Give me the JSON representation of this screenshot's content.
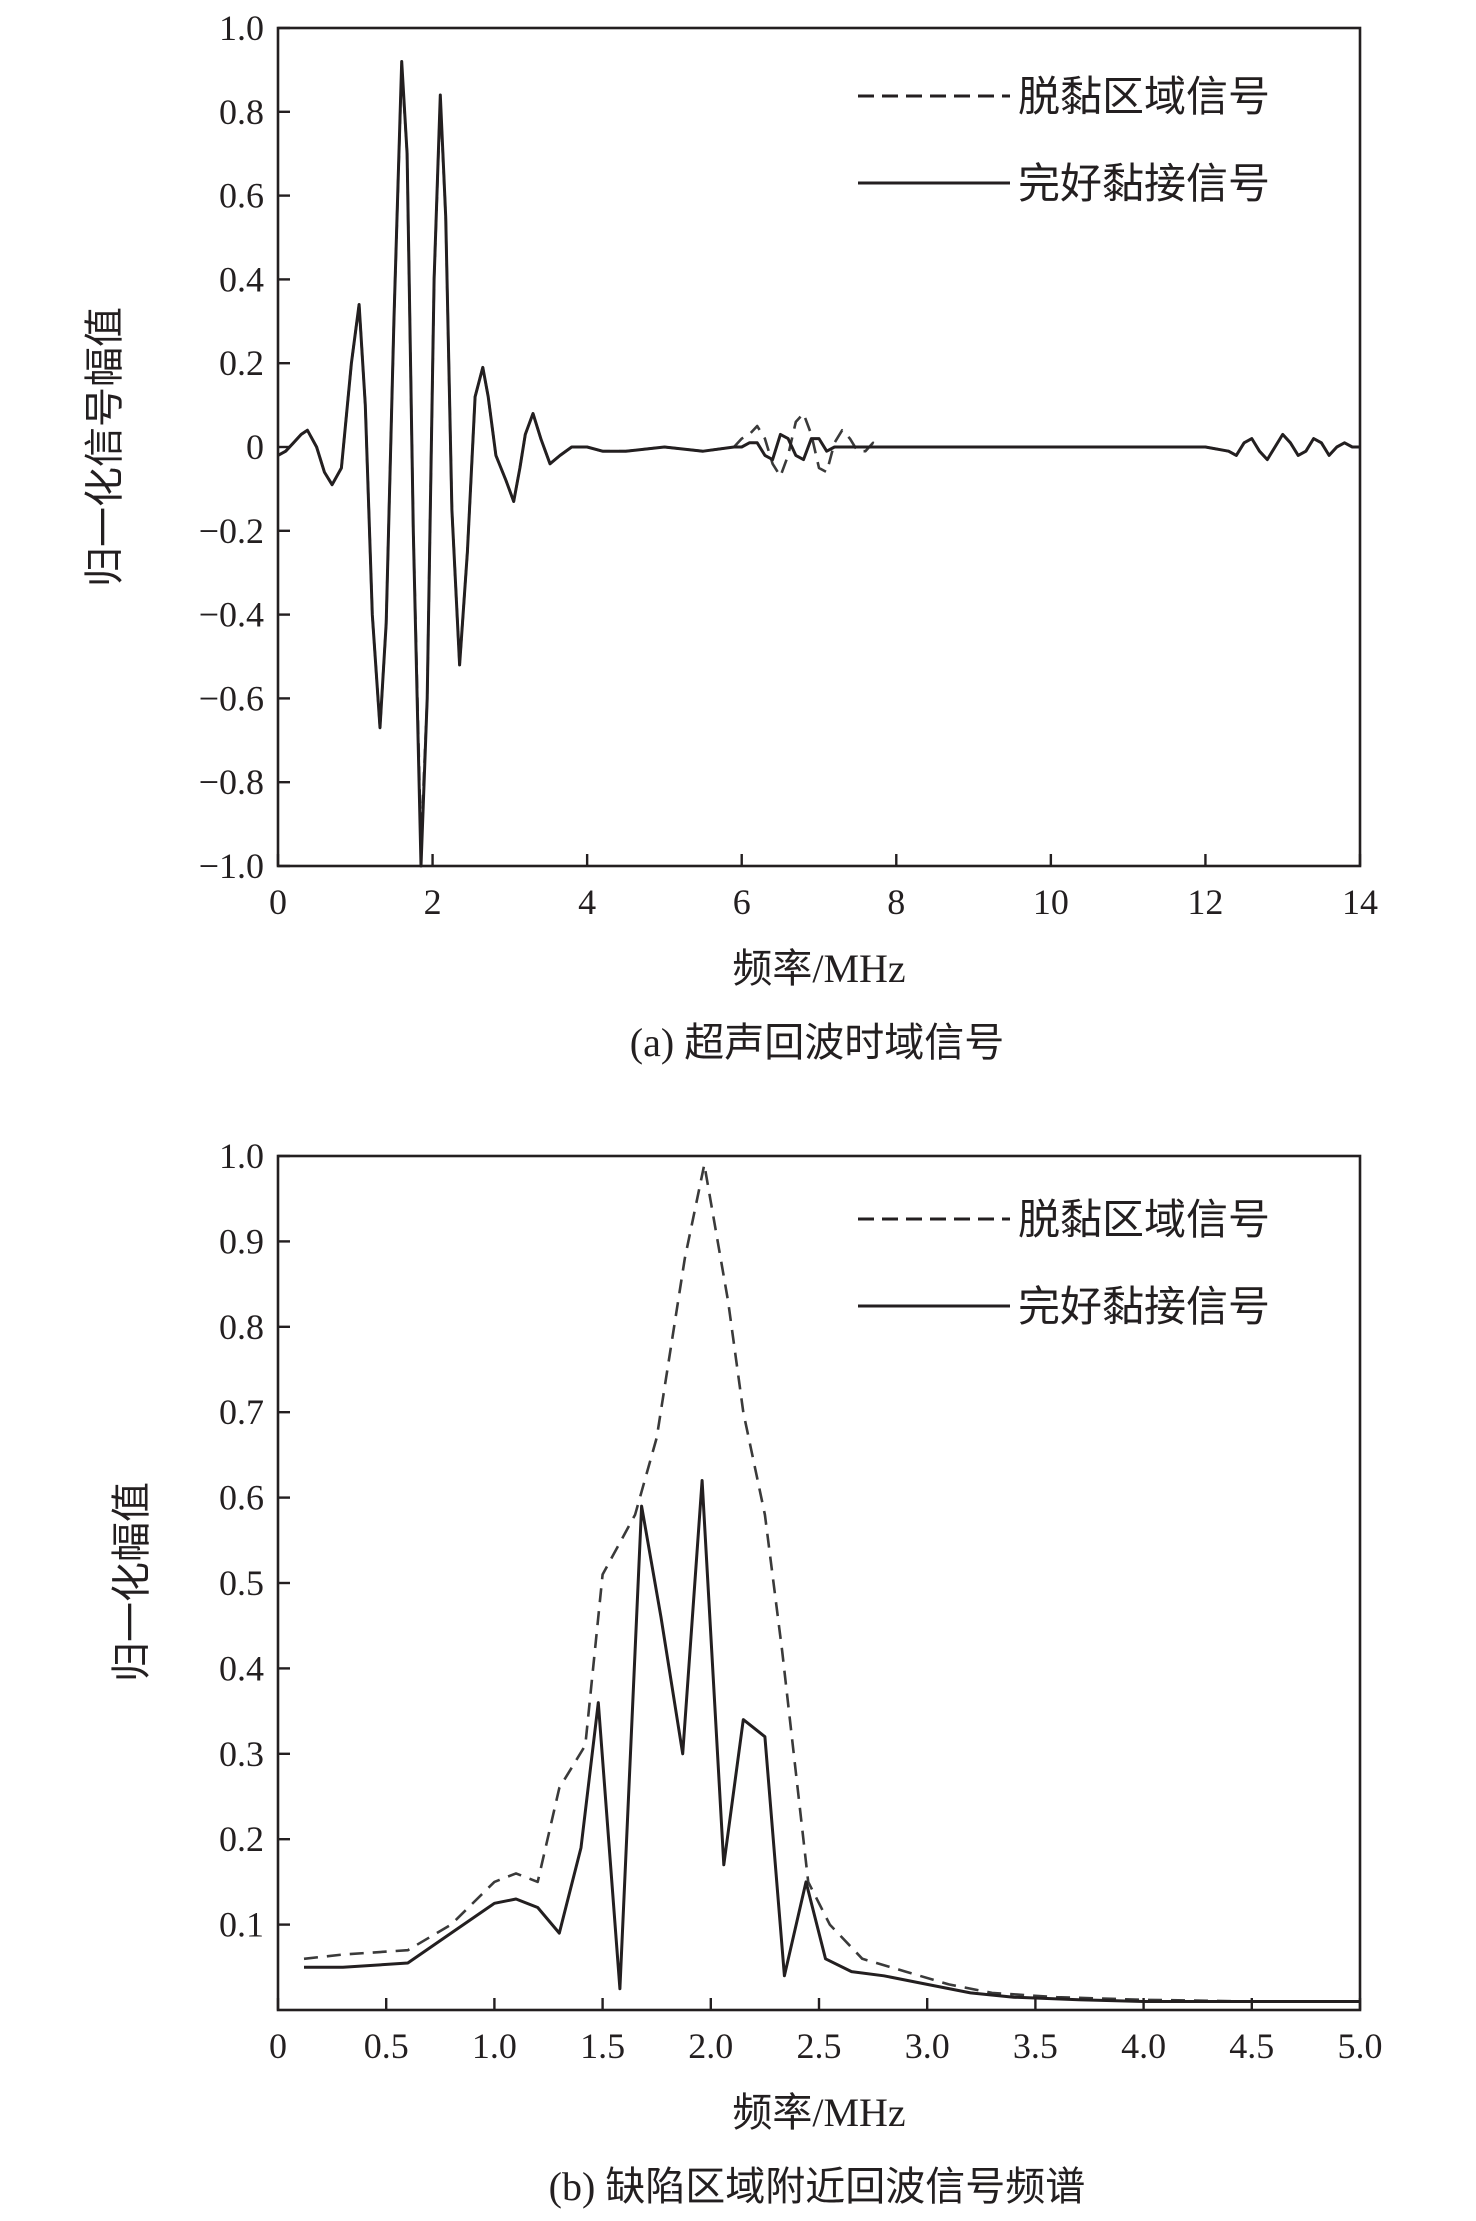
{
  "chart_data": [
    {
      "type": "line",
      "caption": "(a) 超声回波时域信号",
      "xlabel": "频率/MHz",
      "ylabel": "归一化信号幅值",
      "xlim": [
        0,
        14
      ],
      "ylim": [
        -1.0,
        1.0
      ],
      "xticks": [
        0,
        2,
        4,
        6,
        8,
        10,
        12,
        14
      ],
      "xtick_labels": [
        "0",
        "2",
        "4",
        "6",
        "8",
        "10",
        "12",
        "14"
      ],
      "yticks": [
        1.0,
        0.8,
        0.6,
        0.4,
        0.2,
        0,
        -0.2,
        -0.4,
        -0.6,
        -0.8,
        -1.0
      ],
      "ytick_labels": [
        "1.0",
        "0.8",
        "0.6",
        "0.4",
        "0.2",
        "0",
        "−0.2",
        "−0.4",
        "−0.6",
        "−0.8",
        "−1.0"
      ],
      "grid": false,
      "legend_position": "top-right",
      "series": [
        {
          "name": "脱黏区域信号",
          "style": "dashed",
          "x": [
            0,
            0.1,
            0.2,
            0.3,
            0.38,
            0.5,
            0.6,
            0.7,
            0.82,
            0.95,
            1.05,
            1.13,
            1.22,
            1.32,
            1.4,
            1.5,
            1.6,
            1.67,
            1.75,
            1.85,
            1.93,
            2.02,
            2.1,
            2.17,
            2.25,
            2.35,
            2.45,
            2.55,
            2.65,
            2.72,
            2.82,
            2.95,
            3.05,
            3.13,
            3.2,
            3.3,
            3.4,
            3.52,
            3.65,
            3.8,
            4.0,
            4.2,
            4.5,
            5.0,
            5.5,
            5.9,
            6.0,
            6.1,
            6.2,
            6.3,
            6.4,
            6.5,
            6.6,
            6.7,
            6.8,
            6.9,
            7.0,
            7.1,
            7.2,
            7.3,
            7.4,
            7.5,
            7.6,
            7.7,
            7.8,
            8.0,
            8.5,
            9.0,
            10.0,
            11.0,
            12.0,
            12.3,
            12.4,
            12.5,
            12.6,
            12.7,
            12.8,
            12.9,
            13.0,
            13.1,
            13.2,
            13.3,
            13.4,
            13.5,
            13.6,
            13.7,
            13.8,
            13.9,
            14.0
          ],
          "y": [
            -0.02,
            -0.01,
            0.01,
            0.03,
            0.04,
            0.0,
            -0.06,
            -0.09,
            -0.05,
            0.2,
            0.34,
            0.1,
            -0.4,
            -0.67,
            -0.42,
            0.3,
            0.91,
            0.7,
            -0.2,
            -0.95,
            -0.6,
            0.4,
            0.83,
            0.55,
            -0.15,
            -0.52,
            -0.25,
            0.12,
            0.19,
            0.12,
            -0.02,
            -0.08,
            -0.13,
            -0.05,
            0.03,
            0.08,
            0.02,
            -0.04,
            -0.02,
            0.0,
            0.0,
            -0.01,
            -0.01,
            0.0,
            -0.01,
            0.0,
            0.02,
            0.03,
            0.05,
            0.02,
            -0.04,
            -0.07,
            -0.02,
            0.06,
            0.08,
            0.03,
            -0.05,
            -0.06,
            0.01,
            0.04,
            0.02,
            -0.01,
            -0.01,
            0.01,
            0.0,
            0.0,
            0.0,
            0.0,
            0.0,
            0.0,
            0.0,
            -0.01,
            -0.02,
            0.01,
            0.02,
            -0.01,
            -0.03,
            0.0,
            0.03,
            0.01,
            -0.02,
            -0.01,
            0.02,
            0.01,
            -0.02,
            0.0,
            0.01,
            0.0,
            0.0
          ]
        },
        {
          "name": "完好黏接信号",
          "style": "solid",
          "x": [
            0,
            0.1,
            0.2,
            0.3,
            0.38,
            0.5,
            0.6,
            0.7,
            0.82,
            0.95,
            1.05,
            1.13,
            1.22,
            1.32,
            1.4,
            1.5,
            1.6,
            1.67,
            1.75,
            1.85,
            1.93,
            2.02,
            2.1,
            2.17,
            2.25,
            2.35,
            2.45,
            2.55,
            2.65,
            2.72,
            2.82,
            2.95,
            3.05,
            3.13,
            3.2,
            3.3,
            3.4,
            3.52,
            3.65,
            3.8,
            4.0,
            4.2,
            4.5,
            5.0,
            5.5,
            5.9,
            6.0,
            6.1,
            6.2,
            6.3,
            6.4,
            6.5,
            6.6,
            6.7,
            6.8,
            6.9,
            7.0,
            7.1,
            7.2,
            7.3,
            7.4,
            7.5,
            7.6,
            7.7,
            7.8,
            8.0,
            8.5,
            9.0,
            10.0,
            11.0,
            12.0,
            12.3,
            12.4,
            12.5,
            12.6,
            12.7,
            12.8,
            12.9,
            13.0,
            13.1,
            13.2,
            13.3,
            13.4,
            13.5,
            13.6,
            13.7,
            13.8,
            13.9,
            14.0
          ],
          "y": [
            -0.02,
            -0.01,
            0.01,
            0.03,
            0.04,
            0.0,
            -0.06,
            -0.09,
            -0.05,
            0.2,
            0.34,
            0.1,
            -0.4,
            -0.67,
            -0.42,
            0.3,
            0.92,
            0.7,
            -0.2,
            -1.0,
            -0.6,
            0.4,
            0.84,
            0.55,
            -0.15,
            -0.52,
            -0.25,
            0.12,
            0.19,
            0.12,
            -0.02,
            -0.08,
            -0.13,
            -0.05,
            0.03,
            0.08,
            0.02,
            -0.04,
            -0.02,
            0.0,
            0.0,
            -0.01,
            -0.01,
            0.0,
            -0.01,
            0.0,
            0.0,
            0.01,
            0.01,
            -0.02,
            -0.03,
            0.03,
            0.02,
            -0.02,
            -0.03,
            0.02,
            0.02,
            -0.01,
            0.0,
            0.0,
            0.0,
            0.0,
            0.0,
            0.0,
            0.0,
            0.0,
            0.0,
            0.0,
            0.0,
            0.0,
            0.0,
            -0.01,
            -0.02,
            0.01,
            0.02,
            -0.01,
            -0.03,
            0.0,
            0.03,
            0.01,
            -0.02,
            -0.01,
            0.02,
            0.01,
            -0.02,
            0.0,
            0.01,
            0.0,
            0.0
          ]
        }
      ]
    },
    {
      "type": "line",
      "caption": "(b) 缺陷区域附近回波信号频谱",
      "xlabel": "频率/MHz",
      "ylabel": "归一化幅值",
      "xlim": [
        0,
        5
      ],
      "ylim": [
        0,
        1.0
      ],
      "xticks": [
        0,
        0.5,
        1.0,
        1.5,
        2.0,
        2.5,
        3.0,
        3.5,
        4.0,
        4.5,
        5.0
      ],
      "xtick_labels": [
        "0",
        "0.5",
        "1.0",
        "1.5",
        "2.0",
        "2.5",
        "3.0",
        "3.5",
        "4.0",
        "4.5",
        "5.0"
      ],
      "yticks": [
        1.0,
        0.9,
        0.8,
        0.7,
        0.6,
        0.5,
        0.4,
        0.3,
        0.2,
        0.1
      ],
      "ytick_labels": [
        "1.0",
        "0.9",
        "0.8",
        "0.7",
        "0.6",
        "0.5",
        "0.4",
        "0.3",
        "0.2",
        "0.1"
      ],
      "grid": false,
      "legend_position": "top-right",
      "series": [
        {
          "name": "脱黏区域信号",
          "style": "dashed",
          "x": [
            0.12,
            0.3,
            0.6,
            0.8,
            1.0,
            1.1,
            1.2,
            1.3,
            1.42,
            1.5,
            1.65,
            1.75,
            1.88,
            1.97,
            2.08,
            2.15,
            2.25,
            2.33,
            2.45,
            2.55,
            2.7,
            2.9,
            3.1,
            3.3,
            3.6,
            4.0,
            4.5,
            5.0
          ],
          "y": [
            0.06,
            0.065,
            0.07,
            0.1,
            0.15,
            0.16,
            0.15,
            0.26,
            0.31,
            0.51,
            0.58,
            0.67,
            0.88,
            0.99,
            0.83,
            0.7,
            0.58,
            0.42,
            0.15,
            0.1,
            0.06,
            0.045,
            0.03,
            0.02,
            0.015,
            0.012,
            0.01,
            0.01
          ]
        },
        {
          "name": "完好黏接信号",
          "style": "solid",
          "x": [
            0.12,
            0.3,
            0.6,
            0.8,
            1.0,
            1.1,
            1.2,
            1.3,
            1.4,
            1.48,
            1.58,
            1.68,
            1.77,
            1.87,
            1.96,
            2.06,
            2.15,
            2.25,
            2.34,
            2.44,
            2.53,
            2.65,
            2.8,
            3.0,
            3.2,
            3.4,
            3.7,
            4.0,
            4.5,
            5.0
          ],
          "y": [
            0.05,
            0.05,
            0.055,
            0.09,
            0.125,
            0.13,
            0.12,
            0.09,
            0.19,
            0.36,
            0.025,
            0.59,
            0.46,
            0.3,
            0.62,
            0.17,
            0.34,
            0.32,
            0.04,
            0.15,
            0.06,
            0.045,
            0.04,
            0.03,
            0.02,
            0.015,
            0.012,
            0.01,
            0.01,
            0.01
          ]
        }
      ]
    }
  ]
}
